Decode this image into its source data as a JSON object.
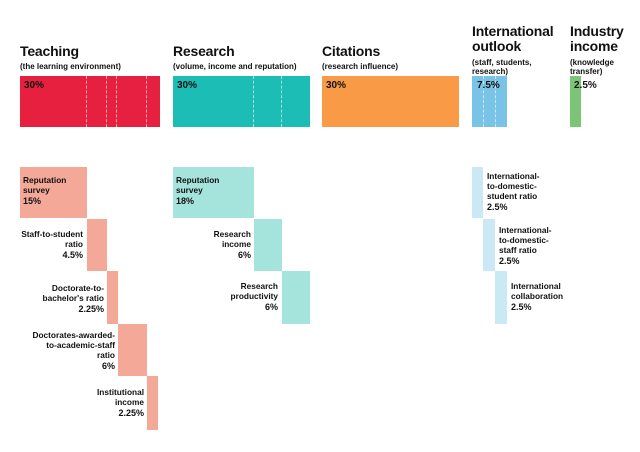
{
  "chart_data": {
    "type": "bar",
    "title": "",
    "unit": "%",
    "categories": [
      {
        "key": "teaching",
        "name": "Teaching",
        "subtitle": "(the learning environment)",
        "weight": 30,
        "weight_label": "30%",
        "color": "#e8203f",
        "sub_color": "#f3a898",
        "components": [
          {
            "name": "Reputation survey",
            "value": 15,
            "label": "15%"
          },
          {
            "name": "Staff-to-student ratio",
            "value": 4.5,
            "label": "4.5%"
          },
          {
            "name": "Doctorate-to-bachelor's ratio",
            "value": 2.25,
            "label": "2.25%"
          },
          {
            "name": "Doctorates-awarded-to-academic-staff ratio",
            "value": 6,
            "label": "6%"
          },
          {
            "name": "Institutional income",
            "value": 2.25,
            "label": "2.25%"
          }
        ]
      },
      {
        "key": "research",
        "name": "Research",
        "subtitle": "(volume, income and reputation)",
        "weight": 30,
        "weight_label": "30%",
        "color": "#1bbdb4",
        "sub_color": "#a5e3dd",
        "components": [
          {
            "name": "Reputation survey",
            "value": 18,
            "label": "18%"
          },
          {
            "name": "Research income",
            "value": 6,
            "label": "6%"
          },
          {
            "name": "Research productivity",
            "value": 6,
            "label": "6%"
          }
        ]
      },
      {
        "key": "citations",
        "name": "Citations",
        "subtitle": "(research influence)",
        "weight": 30,
        "weight_label": "30%",
        "color": "#f89a46",
        "sub_color": "#f89a46",
        "components": []
      },
      {
        "key": "international",
        "name": "International outlook",
        "subtitle": "(staff, students, research)",
        "weight": 7.5,
        "weight_label": "7.5%",
        "color": "#78c3e6",
        "sub_color": "#cbe8f5",
        "components": [
          {
            "name": "International-to-domestic-student ratio",
            "value": 2.5,
            "label": "2.5%"
          },
          {
            "name": "International-to-domestic-staff ratio",
            "value": 2.5,
            "label": "2.5%"
          },
          {
            "name": "International collaboration",
            "value": 2.5,
            "label": "2.5%"
          }
        ]
      },
      {
        "key": "industry",
        "name": "Industry income",
        "subtitle": "(knowledge transfer)",
        "weight": 2.5,
        "weight_label": "2.5%",
        "color": "#7cc576",
        "sub_color": "#7cc576",
        "components": []
      }
    ]
  },
  "text": {
    "teaching": {
      "title": "Teaching",
      "subtitle": "(the learning environment)",
      "main": "30%",
      "c0": [
        "Reputation",
        "survey"
      ],
      "c0v": "15%",
      "c1": [
        "Staff-to-student",
        "ratio"
      ],
      "c1v": "4.5%",
      "c2": [
        "Doctorate-to-",
        "bachelor's ratio"
      ],
      "c2v": "2.25%",
      "c3": [
        "Doctorates-awarded-",
        "to-academic-staff",
        "ratio"
      ],
      "c3v": "6%",
      "c4": [
        "Institutional",
        "income"
      ],
      "c4v": "2.25%"
    },
    "research": {
      "title": "Research",
      "subtitle": "(volume, income and reputation)",
      "main": "30%",
      "c0": [
        "Reputation",
        "survey"
      ],
      "c0v": "18%",
      "c1": [
        "Research",
        "income"
      ],
      "c1v": "6%",
      "c2": [
        "Research",
        "productivity"
      ],
      "c2v": "6%"
    },
    "citations": {
      "title": "Citations",
      "subtitle": "(research influence)",
      "main": "30%"
    },
    "international": {
      "title": [
        "International",
        "outlook"
      ],
      "subtitle": [
        "(staff, students,",
        "research)"
      ],
      "main": "7.5%",
      "c0": [
        "International-",
        "to-domestic-",
        "student ratio"
      ],
      "c0v": "2.5%",
      "c1": [
        "International-",
        "to-domestic-",
        "staff ratio"
      ],
      "c1v": "2.5%",
      "c2": [
        "International",
        "collaboration"
      ],
      "c2v": "2.5%"
    },
    "industry": {
      "title": [
        "Industry",
        "income"
      ],
      "subtitle": [
        "(knowledge",
        "transfer)"
      ],
      "main": "2.5%"
    }
  }
}
